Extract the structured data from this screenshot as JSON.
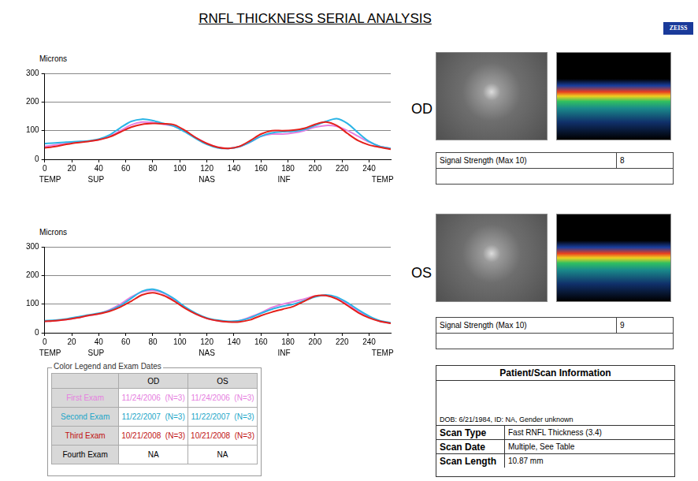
{
  "page": {
    "title": "RNFL THICKNESS SERIAL ANALYSIS",
    "brand": "ZEISS",
    "eyes": [
      {
        "label": "OD",
        "signal_label": "Signal Strength (Max 10)",
        "signal_value": 8
      },
      {
        "label": "OS",
        "signal_label": "Signal Strength (Max 10)",
        "signal_value": 9
      }
    ],
    "legend_table": {
      "title": "Color Legend and Exam Dates",
      "header": [
        "OD",
        "OS"
      ],
      "rows": [
        {
          "label": "First Exam",
          "color": "#e680e0",
          "cells": [
            "11/24/2006  (N=3)",
            "11/24/2006  (N=3)"
          ]
        },
        {
          "label": "Second Exam",
          "color": "#1aa6c8",
          "cells": [
            "11/22/2007  (N=3)",
            "11/22/2007  (N=3)"
          ]
        },
        {
          "label": "Third Exam",
          "color": "#c01010",
          "cells": [
            "10/21/2008  (N=3)",
            "10/21/2008  (N=3)"
          ]
        },
        {
          "label": "Fourth Exam",
          "color": "#000000",
          "cells": [
            "NA",
            "NA"
          ]
        }
      ]
    },
    "patient": {
      "title": "Patient/Scan Information",
      "line": "DOB: 6/21/1984, ID: NA, Gender unknown",
      "rows": [
        [
          "Scan Type",
          "Fast RNFL Thickness (3.4)"
        ],
        [
          "Scan Date",
          "Multiple, See Table"
        ],
        [
          "Scan Length",
          "10.87 mm"
        ]
      ]
    }
  },
  "chart_data": [
    {
      "type": "line",
      "y_label": "Microns",
      "x": [
        0,
        8,
        16,
        24,
        32,
        40,
        48,
        56,
        64,
        72,
        80,
        88,
        96,
        104,
        112,
        120,
        128,
        136,
        144,
        152,
        160,
        168,
        176,
        184,
        192,
        200,
        208,
        216,
        224,
        232,
        240,
        248,
        256
      ],
      "series": [
        {
          "name": "First Exam",
          "color": "#e680e0",
          "values": [
            45,
            50,
            55,
            60,
            63,
            68,
            80,
            100,
            120,
            130,
            128,
            122,
            115,
            98,
            75,
            55,
            42,
            38,
            44,
            60,
            80,
            88,
            88,
            92,
            100,
            112,
            118,
            115,
            100,
            80,
            60,
            45,
            38
          ]
        },
        {
          "name": "Second Exam",
          "color": "#2ab4e6",
          "values": [
            55,
            57,
            60,
            62,
            64,
            70,
            85,
            110,
            132,
            140,
            135,
            125,
            115,
            95,
            72,
            52,
            40,
            38,
            44,
            60,
            80,
            92,
            96,
            98,
            104,
            118,
            132,
            142,
            125,
            92,
            62,
            45,
            38
          ]
        },
        {
          "name": "Third Exam",
          "color": "#e4201a",
          "values": [
            40,
            45,
            52,
            58,
            62,
            68,
            78,
            95,
            112,
            122,
            125,
            124,
            120,
            100,
            75,
            55,
            42,
            38,
            45,
            65,
            88,
            100,
            100,
            102,
            108,
            122,
            130,
            118,
            90,
            65,
            50,
            42,
            35
          ]
        }
      ],
      "xlim": [
        0,
        256
      ],
      "xticks": [
        0,
        20,
        40,
        60,
        80,
        100,
        120,
        140,
        160,
        180,
        200,
        220,
        240
      ],
      "x2ticks": [
        {
          "value": 4,
          "label": "TEMP"
        },
        {
          "value": 38,
          "label": "SUP"
        },
        {
          "value": 120,
          "label": "NAS"
        },
        {
          "value": 177,
          "label": "INF"
        },
        {
          "value": 250,
          "label": "TEMP"
        }
      ],
      "ylim": [
        0,
        300
      ],
      "yticks": [
        0,
        100,
        200,
        300
      ],
      "grid": true
    },
    {
      "type": "line",
      "y_label": "Microns",
      "x": [
        0,
        8,
        16,
        24,
        32,
        40,
        48,
        56,
        64,
        72,
        80,
        88,
        96,
        104,
        112,
        120,
        128,
        136,
        144,
        152,
        160,
        168,
        176,
        184,
        192,
        200,
        208,
        216,
        224,
        232,
        240,
        248,
        256
      ],
      "series": [
        {
          "name": "First Exam",
          "color": "#e680e0",
          "values": [
            40,
            42,
            46,
            52,
            60,
            66,
            80,
            100,
            125,
            142,
            148,
            138,
            115,
            88,
            65,
            50,
            42,
            38,
            42,
            55,
            70,
            88,
            100,
            108,
            118,
            128,
            130,
            122,
            100,
            75,
            55,
            40,
            33
          ]
        },
        {
          "name": "Second Exam",
          "color": "#2ab4e6",
          "values": [
            42,
            44,
            48,
            55,
            62,
            68,
            78,
            95,
            120,
            145,
            152,
            140,
            118,
            90,
            68,
            52,
            44,
            40,
            42,
            52,
            68,
            82,
            92,
            100,
            112,
            125,
            132,
            125,
            105,
            80,
            58,
            42,
            35
          ]
        },
        {
          "name": "Third Exam",
          "color": "#e4201a",
          "values": [
            40,
            42,
            46,
            52,
            60,
            66,
            75,
            90,
            110,
            132,
            140,
            130,
            110,
            85,
            65,
            50,
            42,
            38,
            38,
            45,
            60,
            72,
            82,
            92,
            110,
            128,
            130,
            118,
            95,
            70,
            52,
            40,
            33
          ]
        }
      ],
      "xlim": [
        0,
        256
      ],
      "xticks": [
        0,
        20,
        40,
        60,
        80,
        100,
        120,
        140,
        160,
        180,
        200,
        220,
        240
      ],
      "x2ticks": [
        {
          "value": 4,
          "label": "TEMP"
        },
        {
          "value": 38,
          "label": "SUP"
        },
        {
          "value": 120,
          "label": "NAS"
        },
        {
          "value": 177,
          "label": "INF"
        },
        {
          "value": 250,
          "label": "TEMP"
        }
      ],
      "ylim": [
        0,
        300
      ],
      "yticks": [
        0,
        100,
        200,
        300
      ],
      "grid": true
    }
  ]
}
